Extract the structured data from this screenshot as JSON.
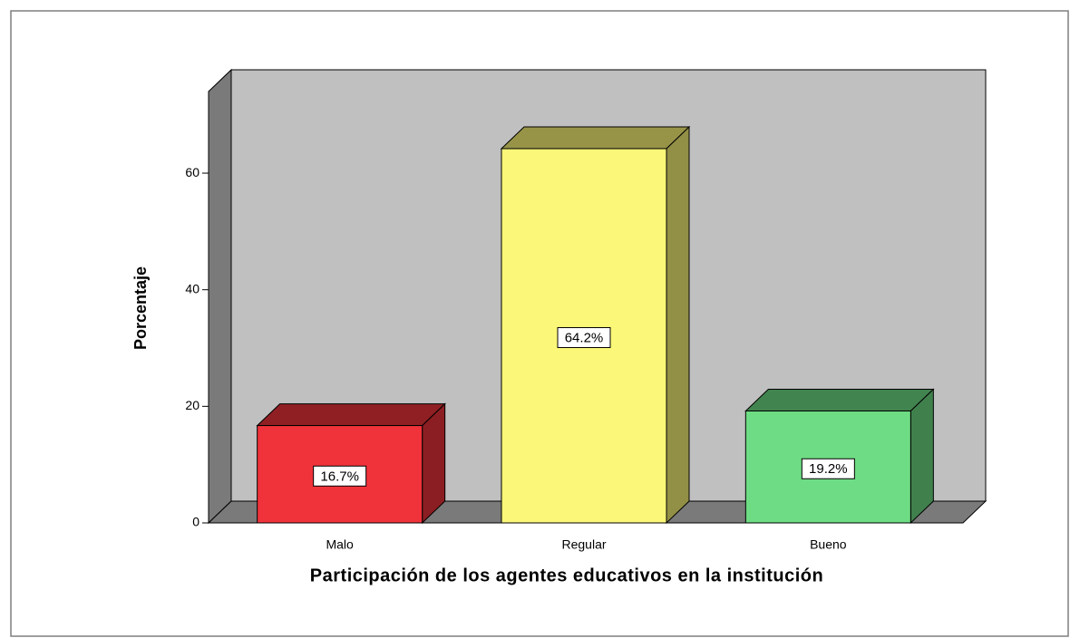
{
  "chart_data": {
    "type": "bar3d",
    "xlabel": "Participación de los agentes educativos en la institución",
    "ylabel": "Porcentaje",
    "categories": [
      "Malo",
      "Regular",
      "Bueno"
    ],
    "values": [
      16.7,
      64.2,
      19.2
    ],
    "value_labels": [
      "16.7%",
      "64.2%",
      "19.2%"
    ],
    "colors": [
      "#f0333a",
      "#fbf778",
      "#6edc84"
    ],
    "ylim": [
      0,
      74
    ],
    "yticks": [
      0,
      20,
      40,
      60
    ]
  }
}
